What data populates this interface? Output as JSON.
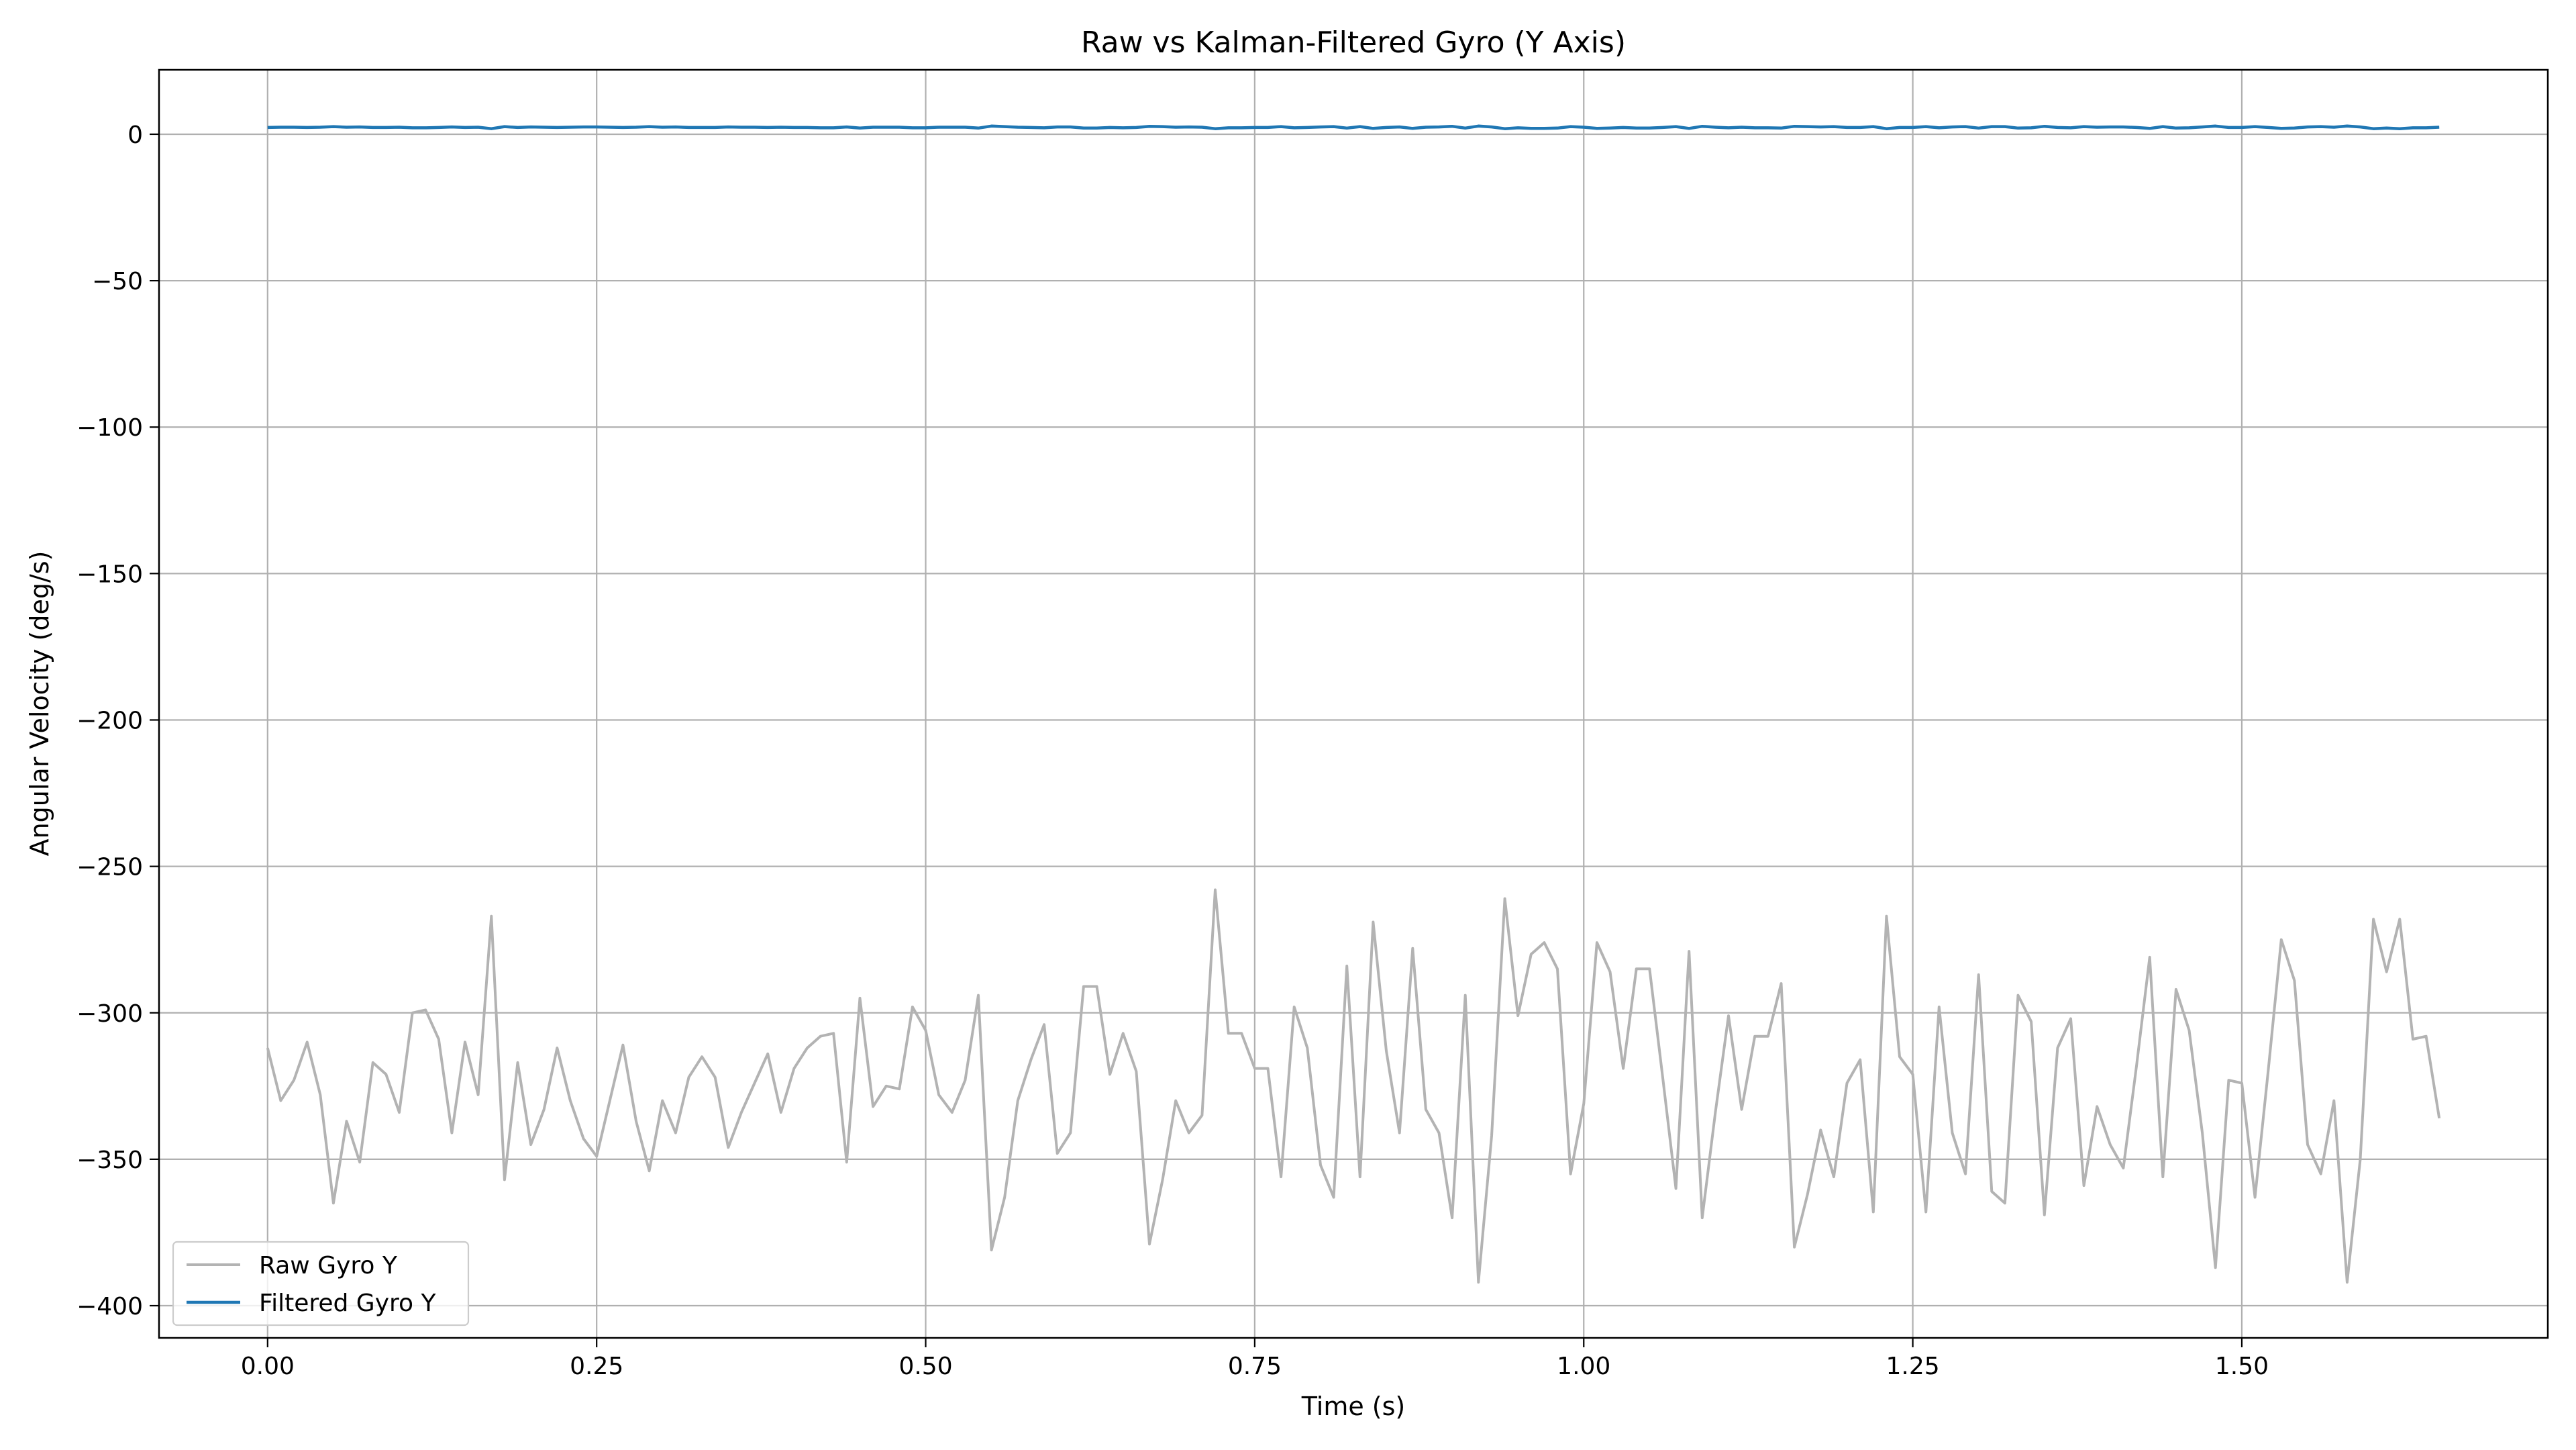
{
  "chart_data": {
    "type": "line",
    "title": "Raw vs Kalman-Filtered Gyro (Y Axis)",
    "xlabel": "Time (s)",
    "ylabel": "Angular Velocity (deg/s)",
    "xlim": [
      -0.0825,
      1.7325
    ],
    "ylim": [
      -411,
      22
    ],
    "grid": true,
    "legend": "lower left",
    "x_ticks": [
      0.0,
      0.25,
      0.5,
      0.75,
      1.0,
      1.25,
      1.5
    ],
    "x_tick_labels": [
      "0.00",
      "0.25",
      "0.50",
      "0.75",
      "1.00",
      "1.25",
      "1.50"
    ],
    "y_ticks": [
      0,
      -50,
      -100,
      -150,
      -200,
      -250,
      -300,
      -350,
      -400
    ],
    "y_tick_labels": [
      "0",
      "−50",
      "−100",
      "−150",
      "−200",
      "−250",
      "−300",
      "−350",
      "−400"
    ],
    "x_start": 0.0,
    "x_step": 0.01,
    "series": [
      {
        "name": "Raw Gyro Y",
        "color": "#b3b3b3",
        "values": [
          -312,
          -330,
          -323,
          -310,
          -328,
          -365,
          -337,
          -351,
          -317,
          -321,
          -334,
          -300,
          -299,
          -309,
          -341,
          -310,
          -328,
          -267,
          -357,
          -317,
          -345,
          -333,
          -312,
          -330,
          -343,
          -349,
          -330,
          -311,
          -337,
          -354,
          -330,
          -341,
          -322,
          -315,
          -322,
          -346,
          -334,
          -324,
          -314,
          -334,
          -319,
          -312,
          -308,
          -307,
          -351,
          -295,
          -332,
          -325,
          -326,
          -298,
          -306,
          -328,
          -334,
          -323,
          -294,
          -381,
          -363,
          -330,
          -316,
          -304,
          -348,
          -341,
          -291,
          -291,
          -321,
          -307,
          -320,
          -379,
          -357,
          -330,
          -341,
          -335,
          -258,
          -307,
          -307,
          -319,
          -319,
          -356,
          -298,
          -312,
          -352,
          -363,
          -284,
          -356,
          -269,
          -313,
          -341,
          -278,
          -333,
          -341,
          -370,
          -294,
          -392,
          -342,
          -261,
          -301,
          -280,
          -276,
          -285,
          -355,
          -331,
          -276,
          -286,
          -319,
          -285,
          -285,
          -322,
          -360,
          -279,
          -370,
          -334,
          -301,
          -333,
          -308,
          -308,
          -290,
          -380,
          -362,
          -340,
          -356,
          -324,
          -316,
          -368,
          -267,
          -315,
          -321,
          -368,
          -298,
          -341,
          -355,
          -287,
          -361,
          -365,
          -294,
          -303,
          -369,
          -312,
          -302,
          -359,
          -332,
          -345,
          -353,
          -318,
          -281,
          -356,
          -292,
          -306,
          -341,
          -387,
          -323,
          -324,
          -363,
          -320,
          -275,
          -289,
          -345,
          -355,
          -330,
          -392,
          -350,
          -268,
          -286,
          -268,
          -309,
          -308,
          -336
        ]
      },
      {
        "name": "Filtered Gyro Y",
        "color": "#1f77b4",
        "values": [
          2.3,
          2.4,
          2.4,
          2.3,
          2.4,
          2.6,
          2.4,
          2.5,
          2.3,
          2.3,
          2.4,
          2.2,
          2.2,
          2.3,
          2.5,
          2.3,
          2.4,
          1.9,
          2.6,
          2.3,
          2.5,
          2.4,
          2.3,
          2.4,
          2.5,
          2.5,
          2.4,
          2.3,
          2.4,
          2.6,
          2.4,
          2.5,
          2.3,
          2.3,
          2.3,
          2.5,
          2.4,
          2.4,
          2.3,
          2.4,
          2.3,
          2.3,
          2.2,
          2.2,
          2.5,
          2.1,
          2.4,
          2.4,
          2.4,
          2.2,
          2.2,
          2.4,
          2.4,
          2.4,
          2.1,
          2.8,
          2.6,
          2.4,
          2.3,
          2.2,
          2.5,
          2.5,
          2.1,
          2.1,
          2.3,
          2.2,
          2.3,
          2.7,
          2.6,
          2.4,
          2.5,
          2.4,
          1.9,
          2.2,
          2.2,
          2.3,
          2.3,
          2.6,
          2.2,
          2.3,
          2.5,
          2.6,
          2.1,
          2.6,
          2.0,
          2.3,
          2.5,
          2.0,
          2.4,
          2.5,
          2.7,
          2.1,
          2.8,
          2.5,
          1.9,
          2.2,
          2.0,
          2.0,
          2.1,
          2.6,
          2.4,
          2.0,
          2.1,
          2.3,
          2.1,
          2.1,
          2.3,
          2.6,
          2.0,
          2.7,
          2.4,
          2.2,
          2.4,
          2.2,
          2.2,
          2.1,
          2.7,
          2.6,
          2.5,
          2.6,
          2.3,
          2.3,
          2.6,
          1.9,
          2.3,
          2.3,
          2.6,
          2.2,
          2.5,
          2.6,
          2.1,
          2.6,
          2.6,
          2.1,
          2.2,
          2.7,
          2.3,
          2.2,
          2.6,
          2.4,
          2.5,
          2.5,
          2.3,
          2.0,
          2.6,
          2.1,
          2.2,
          2.5,
          2.8,
          2.3,
          2.3,
          2.6,
          2.3,
          2.0,
          2.1,
          2.5,
          2.6,
          2.4,
          2.8,
          2.5,
          1.9,
          2.1,
          1.9,
          2.2,
          2.2,
          2.4
        ]
      }
    ]
  }
}
